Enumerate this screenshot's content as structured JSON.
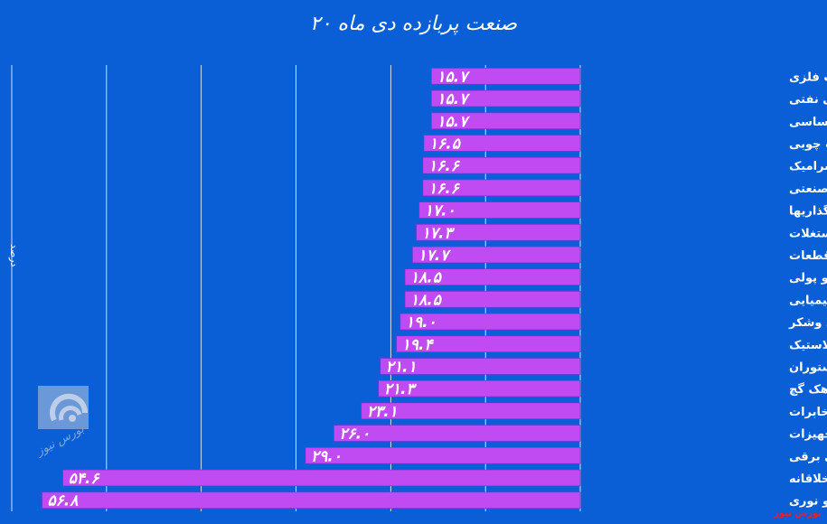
{
  "colors": {
    "background": "#0b5fd6",
    "bar": "#c14bf2",
    "bar_stroke": "#8a2ad8",
    "grid": "#ffffff",
    "text": "#ffffff",
    "value_text": "#ffffff"
  },
  "chart_data": {
    "type": "bar",
    "orientation": "horizontal",
    "title": "۲۰ صنعت پربازده دی ماه",
    "ylabel": "درصد",
    "xlim": [
      0,
      60
    ],
    "grid": true,
    "categories": [
      "محصولات فلزی",
      "فرآورده های نفتی",
      "فلزات اساسی",
      "محصولات چوبی",
      "کاشی و سرامیک",
      "چندرشته ای صنعتی",
      "سرمایه گذاریها",
      "انبوه سازی املاک و مستغلات",
      "خودرو و قطعات",
      "واسطه گریهای مالی و پولی",
      "شیمیایی",
      "غذایی بجز قند وشکر",
      "لاستیک و پلاستیک",
      "هتل و رستوران",
      "سیمان آهک گچ",
      "مخابرات",
      "ماشین آلات و تجهیزات",
      "دستگاههای برقی",
      "فعالیتهای هنری، سرگرمی و خلاقانه",
      "محصولات کامپیوتری الکترونیکی و نوری"
    ],
    "values": [
      15.7,
      15.7,
      15.7,
      16.5,
      16.6,
      16.6,
      17.0,
      17.3,
      17.7,
      18.5,
      18.5,
      19.0,
      19.4,
      21.1,
      21.3,
      23.1,
      26.0,
      29.0,
      54.6,
      56.8
    ],
    "value_labels": [
      "۱۵.۷",
      "۱۵.۷",
      "۱۵.۷",
      "۱۶.۵",
      "۱۶.۶",
      "۱۶.۶",
      "۱۷.۰",
      "۱۷.۳",
      "۱۷.۷",
      "۱۸.۵",
      "۱۸.۵",
      "۱۹.۰",
      "۱۹.۴",
      "۲۱.۱",
      "۲۱.۳",
      "۲۳.۱",
      "۲۶.۰",
      "۲۹.۰",
      "۵۴.۶",
      "۵۶.۸"
    ]
  },
  "watermark": "بورس نیوز",
  "logo_text": "بورس نیوز"
}
